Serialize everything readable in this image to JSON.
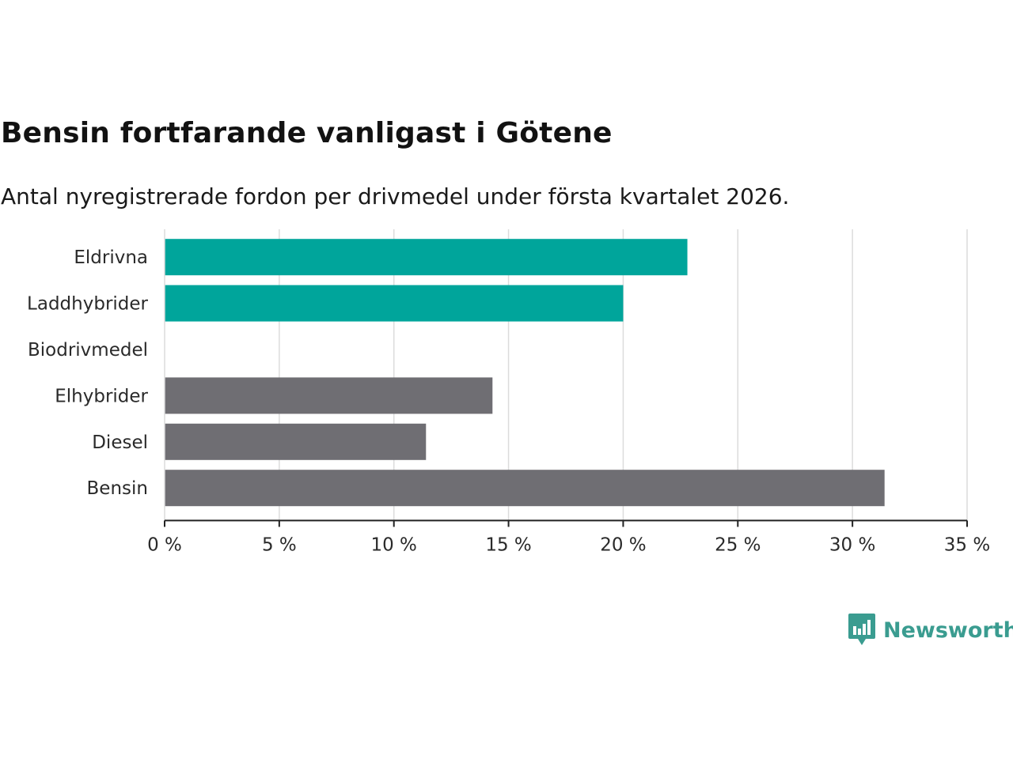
{
  "title": "Bensin fortfarande vanligast i Götene",
  "subtitle": "Antal nyregistrerade fordon per drivmedel under första kvartalet 2026.",
  "brand": {
    "name": "Newsworthy",
    "icon": "newsworthy-logo-icon",
    "color": "#3a9c90"
  },
  "chart_data": {
    "type": "bar",
    "orientation": "horizontal",
    "categories": [
      "Eldrivna",
      "Laddhybrider",
      "Biodrivmedel",
      "Elhybrider",
      "Diesel",
      "Bensin"
    ],
    "values": [
      22.8,
      20.0,
      0,
      14.3,
      11.4,
      31.4
    ],
    "colors": [
      "#00a59b",
      "#00a59b",
      "#00a59b",
      "#6f6e73",
      "#6f6e73",
      "#6f6e73"
    ],
    "xlim": [
      0,
      35
    ],
    "xticks": [
      0,
      5,
      10,
      15,
      20,
      25,
      30,
      35
    ],
    "tick_suffix": " %",
    "grid": true,
    "legend": "none"
  }
}
